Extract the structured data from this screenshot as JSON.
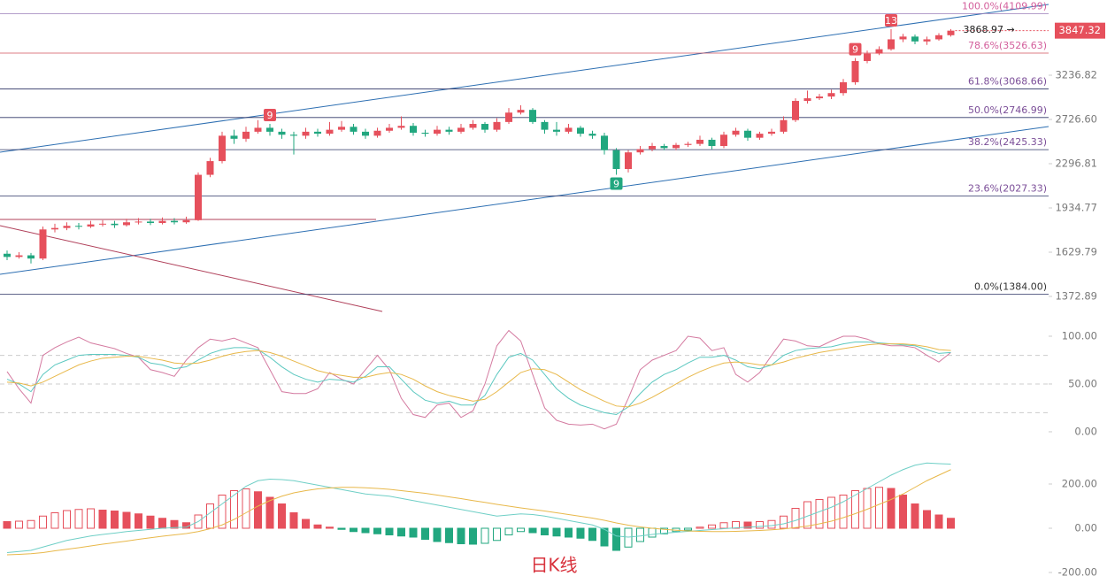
{
  "chart_data": [
    {
      "type": "candlestick",
      "open": [
        1620,
        1600,
        1610,
        1590,
        1780,
        1790,
        1805,
        1800,
        1815,
        1820,
        1810,
        1830,
        1835,
        1825,
        1840,
        1830,
        1845,
        2200,
        2320,
        2560,
        2530,
        2600,
        2640,
        2600,
        2570,
        2560,
        2600,
        2580,
        2620,
        2650,
        2600,
        2560,
        2610,
        2640,
        2660,
        2590,
        2580,
        2620,
        2600,
        2640,
        2680,
        2620,
        2700,
        2800,
        2830,
        2700,
        2620,
        2600,
        2640,
        2580,
        2560,
        2420,
        2250,
        2400,
        2430,
        2460,
        2440,
        2470,
        2480,
        2520,
        2460,
        2570,
        2610,
        2540,
        2580,
        2600,
        2720,
        2930,
        2960,
        2980,
        3020,
        3150,
        3420,
        3520,
        3580,
        3720,
        3760,
        3690,
        3720,
        3780
      ],
      "high": [
        1640,
        1630,
        1625,
        1800,
        1820,
        1830,
        1825,
        1840,
        1845,
        1840,
        1855,
        1860,
        1855,
        1865,
        1860,
        1870,
        2220,
        2350,
        2600,
        2620,
        2650,
        2720,
        2680,
        2630,
        2600,
        2640,
        2630,
        2700,
        2710,
        2680,
        2630,
        2640,
        2680,
        2760,
        2690,
        2620,
        2660,
        2650,
        2680,
        2720,
        2700,
        2740,
        2850,
        2880,
        2850,
        2720,
        2700,
        2680,
        2660,
        2610,
        2590,
        2440,
        2420,
        2460,
        2490,
        2480,
        2490,
        2500,
        2560,
        2540,
        2600,
        2640,
        2630,
        2600,
        2630,
        2760,
        2960,
        3050,
        3010,
        3060,
        3190,
        3460,
        3560,
        3620,
        3868.97,
        3800,
        3790,
        3760,
        3810,
        3870
      ],
      "low": [
        1580,
        1590,
        1560,
        1580,
        1760,
        1775,
        1780,
        1790,
        1800,
        1790,
        1800,
        1815,
        1810,
        1815,
        1815,
        1820,
        1840,
        2180,
        2300,
        2480,
        2500,
        2580,
        2560,
        2530,
        2380,
        2530,
        2550,
        2560,
        2600,
        2570,
        2530,
        2540,
        2590,
        2620,
        2560,
        2550,
        2560,
        2570,
        2580,
        2620,
        2590,
        2600,
        2680,
        2780,
        2680,
        2580,
        2560,
        2580,
        2550,
        2530,
        2380,
        2200,
        2220,
        2380,
        2410,
        2420,
        2420,
        2450,
        2460,
        2430,
        2440,
        2550,
        2510,
        2520,
        2560,
        2580,
        2700,
        2900,
        2940,
        2950,
        2990,
        3120,
        3390,
        3500,
        3560,
        3680,
        3650,
        3640,
        3700,
        3760
      ],
      "close": [
        1600,
        1610,
        1590,
        1780,
        1790,
        1805,
        1800,
        1815,
        1820,
        1810,
        1830,
        1835,
        1825,
        1840,
        1830,
        1845,
        2200,
        2320,
        2560,
        2530,
        2600,
        2640,
        2600,
        2570,
        2560,
        2600,
        2580,
        2620,
        2650,
        2600,
        2560,
        2610,
        2640,
        2660,
        2590,
        2580,
        2620,
        2600,
        2640,
        2680,
        2620,
        2700,
        2800,
        2830,
        2700,
        2620,
        2600,
        2640,
        2580,
        2560,
        2420,
        2250,
        2400,
        2430,
        2460,
        2440,
        2470,
        2480,
        2520,
        2460,
        2570,
        2610,
        2540,
        2580,
        2600,
        2720,
        2930,
        2960,
        2980,
        3020,
        3150,
        3420,
        3520,
        3580,
        3720,
        3760,
        3690,
        3720,
        3780,
        3847.32
      ],
      "up_color": "#e6505c",
      "down_color": "#21a77f",
      "ylim": [
        1260,
        4333
      ],
      "log_scale": true,
      "yticks": [
        {
          "value": 3236.82,
          "label": "3236.82"
        },
        {
          "value": 2726.6,
          "label": "2726.60"
        },
        {
          "value": 2296.81,
          "label": "2296.81"
        },
        {
          "value": 1934.77,
          "label": "1934.77"
        },
        {
          "value": 1629.79,
          "label": "1629.79"
        },
        {
          "value": 1372.89,
          "label": "1372.89"
        }
      ],
      "fib_levels": [
        {
          "value": 4109.99,
          "label": "100.0%(4109.99)",
          "color": "#9a7fb8",
          "label_color": "#d35f9c"
        },
        {
          "value": 3526.63,
          "label": "78.6%(3526.63)",
          "color": "#d2505e",
          "label_color": "#d35f9c"
        },
        {
          "value": 3068.66,
          "label": "61.8%(3068.66)",
          "color": "#2e3566",
          "label_color": "#7b4e98"
        },
        {
          "value": 2746.99,
          "label": "50.0%(2746.99)",
          "color": "#2e3566",
          "label_color": "#7b4e98"
        },
        {
          "value": 2425.33,
          "label": "38.2%(2425.33)",
          "color": "#2e3566",
          "label_color": "#7b4e98"
        },
        {
          "value": 2027.33,
          "label": "23.6%(2027.33)",
          "color": "#2e3566",
          "label_color": "#7b4e98"
        },
        {
          "value": 1384.0,
          "label": "0.0%(1384.00)",
          "color": "#2e3566",
          "label_color": "#333333"
        }
      ],
      "markers": [
        {
          "text": "9",
          "candle": 22,
          "color": "#e6505c",
          "side": "above"
        },
        {
          "text": "9",
          "candle": 51,
          "color": "#21a77f",
          "side": "below"
        },
        {
          "text": "9",
          "candle": 71,
          "color": "#e6505c",
          "side": "above"
        },
        {
          "text": "13",
          "candle": 74,
          "color": "#e6505c",
          "side": "above"
        }
      ],
      "annotation": "3868.97 →",
      "caption": "日K线"
    },
    {
      "type": "line",
      "series": [
        {
          "color": "#d47aa0",
          "values": [
            63,
            45,
            30,
            80,
            88,
            94,
            99,
            93,
            90,
            87,
            82,
            78,
            65,
            62,
            58,
            75,
            88,
            97,
            95,
            98,
            93,
            88,
            65,
            42,
            40,
            40,
            45,
            62,
            55,
            50,
            65,
            80,
            65,
            35,
            18,
            15,
            28,
            30,
            15,
            22,
            50,
            90,
            106,
            95,
            60,
            25,
            12,
            8,
            7,
            8,
            3,
            8,
            35,
            65,
            75,
            80,
            85,
            100,
            98,
            85,
            88,
            60,
            52,
            62,
            80,
            97,
            95,
            90,
            89,
            95,
            100,
            100,
            97,
            92,
            90,
            90,
            88,
            80,
            73,
            83
          ]
        },
        {
          "color": "#5cc8c0",
          "values": [
            55,
            50,
            42,
            60,
            70,
            75,
            80,
            81,
            81,
            81,
            80,
            78,
            72,
            70,
            66,
            68,
            75,
            82,
            86,
            88,
            88,
            86,
            78,
            68,
            60,
            55,
            52,
            55,
            54,
            52,
            58,
            68,
            68,
            55,
            42,
            33,
            30,
            32,
            28,
            28,
            38,
            60,
            78,
            82,
            75,
            60,
            45,
            35,
            28,
            24,
            20,
            18,
            26,
            40,
            52,
            60,
            65,
            72,
            78,
            78,
            80,
            75,
            68,
            66,
            70,
            80,
            85,
            87,
            88,
            89,
            92,
            94,
            94,
            93,
            92,
            91,
            90,
            86,
            82,
            83
          ]
        },
        {
          "color": "#e8b84a",
          "values": [
            52,
            51,
            48,
            52,
            58,
            64,
            70,
            74,
            77,
            78,
            79,
            79,
            77,
            75,
            72,
            71,
            72,
            75,
            79,
            82,
            84,
            85,
            83,
            79,
            74,
            69,
            64,
            61,
            59,
            57,
            57,
            60,
            62,
            60,
            55,
            48,
            42,
            38,
            35,
            32,
            34,
            42,
            52,
            62,
            66,
            65,
            60,
            52,
            44,
            38,
            32,
            27,
            26,
            30,
            36,
            43,
            50,
            57,
            63,
            68,
            72,
            73,
            72,
            70,
            70,
            73,
            77,
            80,
            83,
            85,
            87,
            89,
            91,
            92,
            92,
            92,
            91,
            89,
            86,
            85
          ]
        }
      ],
      "ylim": [
        -20.4,
        118.5
      ],
      "yticks": [
        {
          "value": 100,
          "label": "100.00"
        },
        {
          "value": 50,
          "label": "50.00"
        },
        {
          "value": 0,
          "label": "0.00"
        }
      ],
      "grid_levels": [
        80,
        50,
        20
      ]
    },
    {
      "type": "macd",
      "histogram": [
        30,
        32,
        35,
        55,
        70,
        80,
        85,
        88,
        82,
        78,
        72,
        65,
        55,
        45,
        35,
        25,
        60,
        110,
        150,
        170,
        178,
        165,
        140,
        110,
        70,
        40,
        15,
        5,
        -5,
        -15,
        -20,
        -25,
        -30,
        -35,
        -40,
        -50,
        -60,
        -65,
        -70,
        -72,
        -68,
        -55,
        -30,
        -15,
        -20,
        -30,
        -35,
        -40,
        -45,
        -55,
        -80,
        -100,
        -85,
        -60,
        -40,
        -25,
        -15,
        -8,
        5,
        15,
        25,
        30,
        28,
        30,
        35,
        55,
        90,
        120,
        130,
        140,
        150,
        170,
        180,
        185,
        180,
        150,
        110,
        80,
        60,
        45
      ],
      "series": [
        {
          "color": "#6fcfc6",
          "values": [
            -110,
            -105,
            -100,
            -85,
            -70,
            -55,
            -45,
            -35,
            -28,
            -22,
            -15,
            -10,
            -5,
            0,
            3,
            5,
            30,
            70,
            110,
            150,
            190,
            215,
            222,
            220,
            215,
            205,
            195,
            185,
            175,
            165,
            155,
            150,
            145,
            135,
            125,
            115,
            105,
            95,
            85,
            75,
            65,
            55,
            60,
            65,
            62,
            55,
            45,
            35,
            25,
            15,
            -5,
            -35,
            -40,
            -35,
            -28,
            -22,
            -18,
            -14,
            -10,
            -6,
            -2,
            2,
            5,
            8,
            12,
            20,
            35,
            55,
            75,
            95,
            120,
            150,
            180,
            210,
            240,
            265,
            285,
            295,
            292,
            290
          ]
        },
        {
          "color": "#e8b84a",
          "values": [
            -120,
            -118,
            -115,
            -110,
            -102,
            -95,
            -88,
            -80,
            -72,
            -65,
            -58,
            -50,
            -43,
            -36,
            -30,
            -24,
            -15,
            -2,
            15,
            40,
            70,
            100,
            125,
            145,
            160,
            170,
            178,
            182,
            185,
            185,
            183,
            180,
            176,
            170,
            164,
            158,
            150,
            142,
            134,
            125,
            117,
            108,
            100,
            92,
            85,
            78,
            70,
            62,
            54,
            46,
            36,
            24,
            14,
            6,
            0,
            -5,
            -9,
            -12,
            -14,
            -15,
            -15,
            -14,
            -12,
            -10,
            -7,
            -3,
            3,
            10,
            20,
            32,
            48,
            66,
            86,
            108,
            130,
            155,
            185,
            215,
            240,
            265
          ]
        }
      ],
      "up_color": "#e6505c",
      "down_color": "#21a77f",
      "ylim": [
        -252,
        348
      ],
      "yticks": [
        {
          "value": 200,
          "label": "200.00"
        },
        {
          "value": 0,
          "label": "0.00"
        },
        {
          "value": -200,
          "label": "-200.00"
        }
      ]
    }
  ]
}
